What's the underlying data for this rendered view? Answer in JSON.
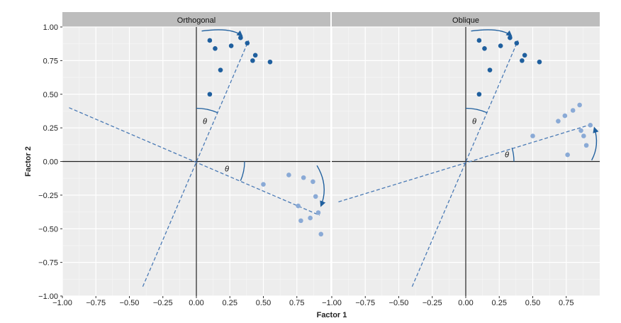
{
  "chart_data": {
    "type": "scatter",
    "xlabel": "Factor 1",
    "ylabel": "Factor 2",
    "xlim": [
      -1.0,
      1.0
    ],
    "ylim": [
      -1.0,
      1.0
    ],
    "x_ticks": [
      -1.0,
      -0.75,
      -0.5,
      -0.25,
      0.0,
      0.25,
      0.5,
      0.75
    ],
    "x_tick_labels": [
      "−1.00",
      "−0.75",
      "−0.50",
      "−0.25",
      "0.00",
      "0.25",
      "0.50",
      "0.75"
    ],
    "y_ticks": [
      -1.0,
      -0.75,
      -0.5,
      -0.25,
      0.0,
      0.25,
      0.5,
      0.75,
      1.0
    ],
    "y_tick_labels": [
      "−1.00",
      "−0.75",
      "−0.50",
      "−0.25",
      "0.00",
      "0.25",
      "0.50",
      "0.75",
      "1.00"
    ],
    "grid": true,
    "angle_label": "θ",
    "colors": {
      "cluster_a": "#1f5f9e",
      "cluster_b": "#8aaad6",
      "rotated_axis": "#4a7ab5",
      "panel_background": "#ededed",
      "strip_background": "#bdbdbd"
    },
    "panels": [
      {
        "title": "Orthogonal",
        "cluster_a": [
          [
            0.1,
            0.9
          ],
          [
            0.14,
            0.84
          ],
          [
            0.18,
            0.68
          ],
          [
            0.26,
            0.86
          ],
          [
            0.33,
            0.92
          ],
          [
            0.38,
            0.88
          ],
          [
            0.42,
            0.75
          ],
          [
            0.44,
            0.79
          ],
          [
            0.55,
            0.74
          ],
          [
            0.1,
            0.5
          ]
        ],
        "cluster_b": [
          [
            0.5,
            -0.17
          ],
          [
            0.69,
            -0.1
          ],
          [
            0.76,
            -0.33
          ],
          [
            0.78,
            -0.44
          ],
          [
            0.8,
            -0.12
          ],
          [
            0.85,
            -0.42
          ],
          [
            0.87,
            -0.15
          ],
          [
            0.89,
            -0.26
          ],
          [
            0.91,
            -0.38
          ],
          [
            0.93,
            -0.54
          ]
        ],
        "rotated_axes": [
          {
            "from": [
              -0.95,
              0.4
            ],
            "to": [
              0.92,
              -0.4
            ]
          },
          {
            "from": [
              -0.4,
              -0.93
            ],
            "to": [
              0.39,
              0.9
            ]
          }
        ]
      },
      {
        "title": "Oblique",
        "cluster_a": [
          [
            0.1,
            0.9
          ],
          [
            0.14,
            0.84
          ],
          [
            0.18,
            0.68
          ],
          [
            0.26,
            0.86
          ],
          [
            0.33,
            0.92
          ],
          [
            0.38,
            0.88
          ],
          [
            0.42,
            0.75
          ],
          [
            0.44,
            0.79
          ],
          [
            0.55,
            0.74
          ],
          [
            0.1,
            0.5
          ]
        ],
        "cluster_b": [
          [
            0.5,
            0.19
          ],
          [
            0.69,
            0.3
          ],
          [
            0.74,
            0.34
          ],
          [
            0.76,
            0.05
          ],
          [
            0.8,
            0.38
          ],
          [
            0.85,
            0.42
          ],
          [
            0.86,
            0.23
          ],
          [
            0.88,
            0.19
          ],
          [
            0.9,
            0.12
          ],
          [
            0.93,
            0.27
          ]
        ],
        "rotated_axes": [
          {
            "from": [
              -0.95,
              -0.3
            ],
            "to": [
              0.95,
              0.28
            ]
          },
          {
            "from": [
              -0.4,
              -0.93
            ],
            "to": [
              0.39,
              0.9
            ]
          }
        ]
      }
    ]
  }
}
